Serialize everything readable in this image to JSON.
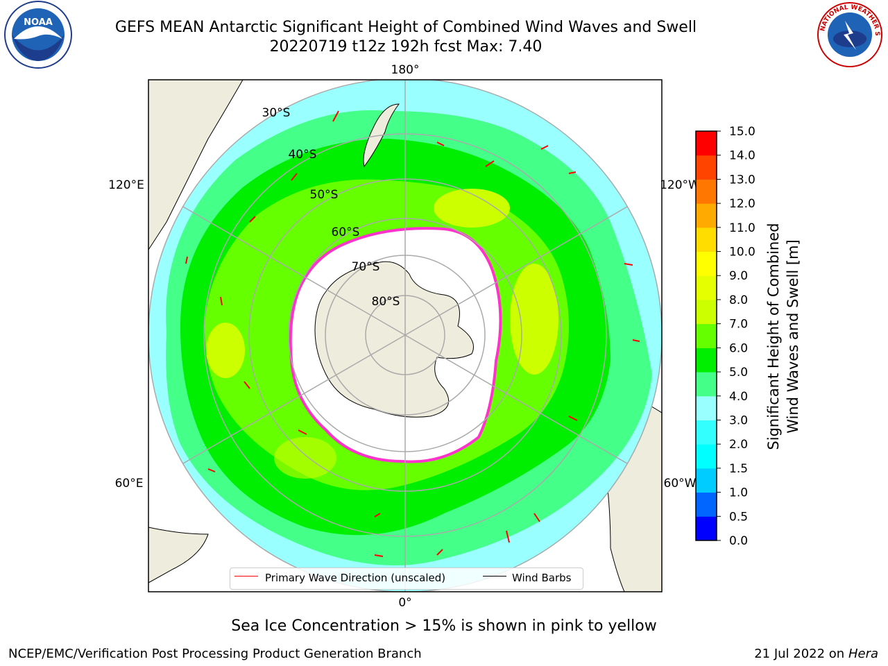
{
  "title": {
    "line1": "GEFS MEAN Antarctic Significant Height of Combined Wind Waves and Swell",
    "line2": "20220719 t12z 192h fcst   Max: 7.40"
  },
  "logos": {
    "left": "noaa-logo",
    "right": "nws-logo"
  },
  "map": {
    "projection": "south-polar-stereographic",
    "longitude_labels": {
      "top": "180°",
      "bottom": "0°",
      "left_upper": "120°E",
      "left_lower": "60°E",
      "right_upper": "120°W",
      "right_lower": "60°W"
    },
    "latitude_labels": [
      "30°S",
      "40°S",
      "50°S",
      "60°S",
      "70°S",
      "80°S"
    ],
    "land_color": "#eeecdc",
    "ice_color": "#ffffff",
    "ice_edge_color": "#ff33cc",
    "arrow_color": "#ff0000",
    "barb_color": "#000000"
  },
  "legend": {
    "wave_direction": "Primary Wave Direction (unscaled)",
    "wind_barbs": "Wind Barbs"
  },
  "colorbar": {
    "label_line1": "Significant Height of Combined",
    "label_line2": "Wind Waves and Swell [m]",
    "ticks": [
      "0.0",
      "0.5",
      "1.0",
      "1.5",
      "2.0",
      "3.0",
      "4.0",
      "5.0",
      "6.0",
      "7.0",
      "8.0",
      "9.0",
      "10.0",
      "11.0",
      "12.0",
      "13.0",
      "14.0",
      "15.0"
    ],
    "colors": [
      "#0000ff",
      "#0066ff",
      "#00ccff",
      "#00ffff",
      "#33ffff",
      "#99ffff",
      "#44ff88",
      "#00ee00",
      "#66ff00",
      "#ccff00",
      "#e6ff00",
      "#ffff00",
      "#ffdd00",
      "#ffaa00",
      "#ff7700",
      "#ff4400",
      "#ff0000"
    ]
  },
  "footer": {
    "sea_ice_note": "Sea Ice Concentration > 15% is shown in pink to yellow",
    "branch": "NCEP/EMC/Verification Post Processing Product Generation Branch",
    "date": "21 Jul 2022 on",
    "host": "Hera"
  }
}
